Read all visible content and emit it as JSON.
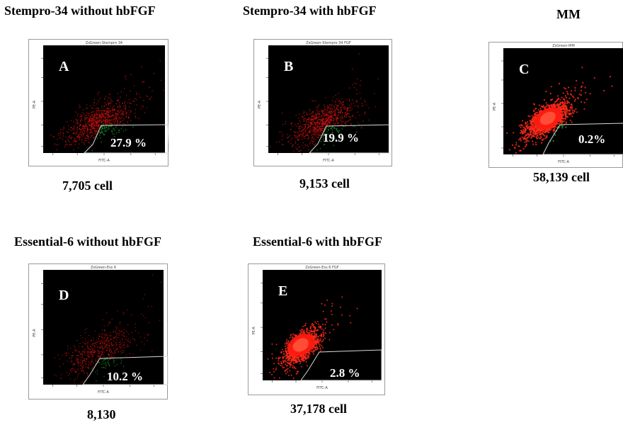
{
  "chart_data": [
    {
      "type": "scatter",
      "panel": "A",
      "title": "Stempro-34 without hbFGF",
      "plot_title": "ZsGreen-Stempro 34",
      "gate_percent": "27.9 %",
      "cell_count": "7,705 cell",
      "xlabel": "FITC-A",
      "ylabel": "PE-A",
      "colors": {
        "main": "#c81010",
        "gated": "#1aa02a"
      }
    },
    {
      "type": "scatter",
      "panel": "B",
      "title": "Stempro-34 with hbFGF",
      "plot_title": "ZsGreen-Stempro 34 FGF",
      "gate_percent": "19.9 %",
      "cell_count": "9,153 cell",
      "xlabel": "FITC-A",
      "ylabel": "PE-A",
      "colors": {
        "main": "#c81010",
        "gated": "#1aa02a"
      }
    },
    {
      "type": "scatter",
      "panel": "C",
      "title": "MM",
      "plot_title": "ZsGreen-MM",
      "gate_percent": "0.2%",
      "cell_count": "58,139 cell",
      "xlabel": "FITC-A",
      "ylabel": "PE-A",
      "colors": {
        "main": "#ff2a1a",
        "gated": "#1aa02a"
      }
    },
    {
      "type": "scatter",
      "panel": "D",
      "title": "Essential-6 without hbFGF",
      "plot_title": "ZsGreen-Ess 6",
      "gate_percent": "10.2 %",
      "cell_count": "8,130",
      "xlabel": "FITC-A",
      "ylabel": "PE-A",
      "colors": {
        "main": "#c81010",
        "gated": "#1aa02a"
      }
    },
    {
      "type": "scatter",
      "panel": "E",
      "title": "Essential-6 with hbFGF",
      "plot_title": "ZsGreen-Ess 6 FGF",
      "gate_percent": "2.8 %",
      "cell_count": "37,178 cell",
      "xlabel": "FITC-A",
      "ylabel": "PE-A",
      "colors": {
        "main": "#ff2a1a",
        "gated": "#1aa02a"
      }
    }
  ]
}
